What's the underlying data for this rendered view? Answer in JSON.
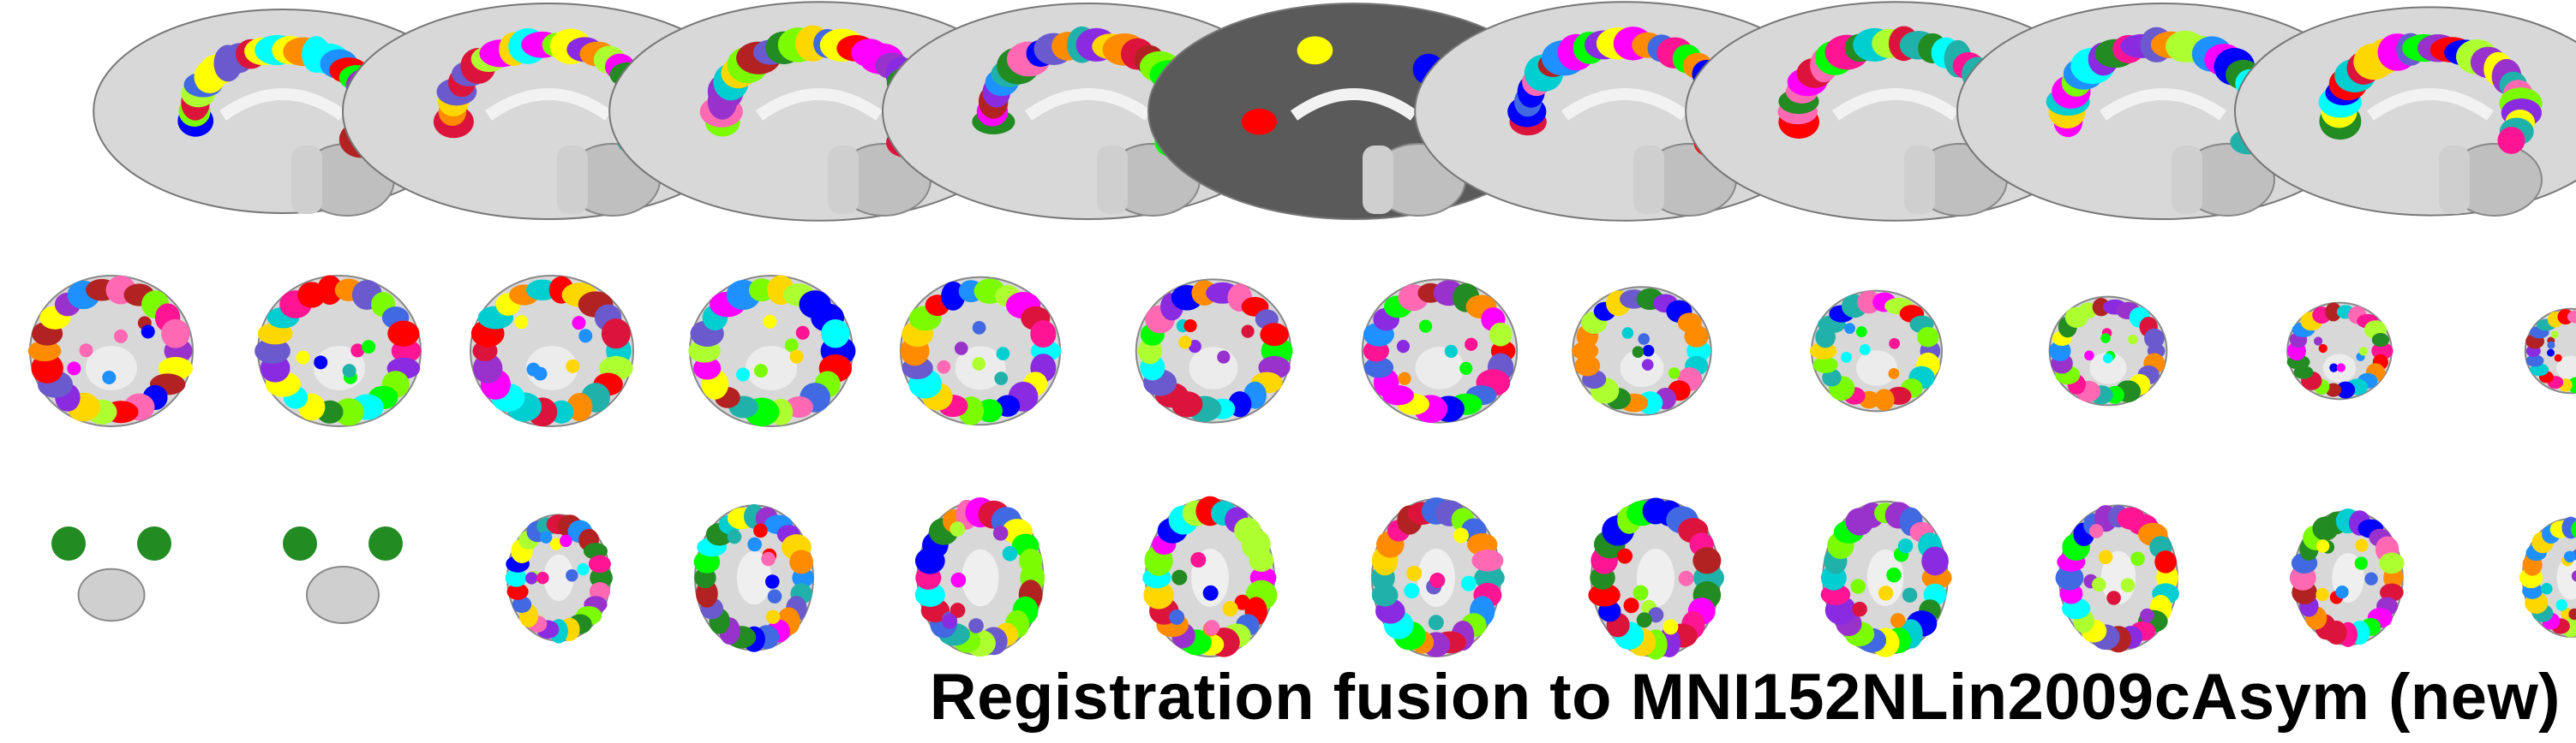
{
  "figure": {
    "caption": "Registration fusion to MNI152NLin2009cAsym (new)",
    "views": [
      {
        "name": "sagittal",
        "count": 9
      },
      {
        "name": "coronal",
        "count": 12
      },
      {
        "name": "axial",
        "count": 12
      }
    ],
    "colors": {
      "background": "#ffffff",
      "brain_gray": "#d8d8d8",
      "parcel_palette": [
        "#ff00ff",
        "#00ff00",
        "#0000ff",
        "#ffff00",
        "#ff0000",
        "#00ffff",
        "#8a2be2",
        "#ff8c00",
        "#228b22",
        "#ff69b4",
        "#4169e1",
        "#7cfc00",
        "#dc143c",
        "#20b2aa",
        "#9932cc",
        "#ffd700",
        "#1e90ff",
        "#adff2f",
        "#b22222",
        "#00ced1",
        "#ff1493",
        "#6a5acd"
      ]
    }
  }
}
